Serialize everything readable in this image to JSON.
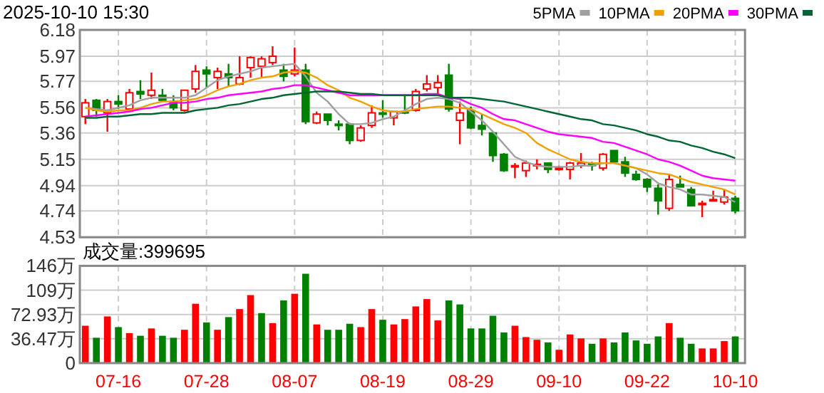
{
  "chart_data": [
    {
      "type": "candlestick",
      "title": "2025-10-10 15:30",
      "categories": [
        null,
        null,
        null,
        null,
        null,
        null,
        null,
        null,
        null,
        null,
        null,
        null,
        null,
        null,
        null,
        null,
        null,
        null,
        null,
        null,
        null,
        null,
        null,
        null,
        null,
        null,
        null,
        null,
        null,
        null,
        null,
        null,
        null,
        null,
        null,
        null,
        null,
        null,
        null,
        null,
        null,
        null,
        null,
        null,
        null,
        null,
        null,
        null,
        null,
        null,
        null,
        null,
        null,
        null,
        null,
        null,
        null,
        null,
        null,
        null
      ],
      "ohlc": [
        [
          5.49,
          5.63,
          5.43,
          5.6
        ],
        [
          5.62,
          5.63,
          5.49,
          5.54
        ],
        [
          5.52,
          5.63,
          5.37,
          5.61
        ],
        [
          5.61,
          5.66,
          5.55,
          5.59
        ],
        [
          5.55,
          5.71,
          5.54,
          5.68
        ],
        [
          5.69,
          5.78,
          5.63,
          5.67
        ],
        [
          5.66,
          5.84,
          5.63,
          5.7
        ],
        [
          5.66,
          5.71,
          5.61,
          5.62
        ],
        [
          5.61,
          5.66,
          5.54,
          5.56
        ],
        [
          5.54,
          5.7,
          5.53,
          5.7
        ],
        [
          5.71,
          5.9,
          5.68,
          5.85
        ],
        [
          5.86,
          5.89,
          5.72,
          5.83
        ],
        [
          5.8,
          5.88,
          5.71,
          5.85
        ],
        [
          5.83,
          5.91,
          5.73,
          5.8
        ],
        [
          5.75,
          5.97,
          5.74,
          5.8
        ],
        [
          5.88,
          5.97,
          5.8,
          5.96
        ],
        [
          5.89,
          5.97,
          5.8,
          5.95
        ],
        [
          5.92,
          6.05,
          5.9,
          5.97
        ],
        [
          5.86,
          5.91,
          5.77,
          5.81
        ],
        [
          5.83,
          6.04,
          5.81,
          5.86
        ],
        [
          5.86,
          5.91,
          5.43,
          5.45
        ],
        [
          5.44,
          5.53,
          5.43,
          5.51
        ],
        [
          5.51,
          5.51,
          5.42,
          5.46
        ],
        [
          5.43,
          5.46,
          5.38,
          5.42
        ],
        [
          5.43,
          5.44,
          5.27,
          5.3
        ],
        [
          5.3,
          5.42,
          5.29,
          5.4
        ],
        [
          5.42,
          5.58,
          5.4,
          5.52
        ],
        [
          5.52,
          5.62,
          5.48,
          5.51
        ],
        [
          5.48,
          5.53,
          5.42,
          5.53
        ],
        [
          5.53,
          5.66,
          5.51,
          5.52
        ],
        [
          5.54,
          5.71,
          5.53,
          5.69
        ],
        [
          5.71,
          5.82,
          5.69,
          5.75
        ],
        [
          5.72,
          5.82,
          5.67,
          5.76
        ],
        [
          5.82,
          5.91,
          5.53,
          5.55
        ],
        [
          5.46,
          5.61,
          5.27,
          5.52
        ],
        [
          5.54,
          5.57,
          5.39,
          5.4
        ],
        [
          5.42,
          5.51,
          5.34,
          5.39
        ],
        [
          5.36,
          5.36,
          5.13,
          5.18
        ],
        [
          5.19,
          5.2,
          5.05,
          5.06
        ],
        [
          5.09,
          5.12,
          5.0,
          5.1
        ],
        [
          5.06,
          5.14,
          5.01,
          5.12
        ],
        [
          5.1,
          5.15,
          5.07,
          5.11
        ],
        [
          5.12,
          5.12,
          5.04,
          5.07
        ],
        [
          5.07,
          5.1,
          5.06,
          5.08
        ],
        [
          5.07,
          5.13,
          4.99,
          5.12
        ],
        [
          5.1,
          5.2,
          5.08,
          5.12
        ],
        [
          5.12,
          5.13,
          5.06,
          5.1
        ],
        [
          5.08,
          5.2,
          5.06,
          5.19
        ],
        [
          5.22,
          5.22,
          5.13,
          5.13
        ],
        [
          5.13,
          5.17,
          5.01,
          5.04
        ],
        [
          5.03,
          5.06,
          4.98,
          4.99
        ],
        [
          4.99,
          5.0,
          4.89,
          4.93
        ],
        [
          4.92,
          4.95,
          4.71,
          4.82
        ],
        [
          4.76,
          5.03,
          4.74,
          4.99
        ],
        [
          4.95,
          5.02,
          4.93,
          4.93
        ],
        [
          4.91,
          4.93,
          4.78,
          4.78
        ],
        [
          4.79,
          4.82,
          4.69,
          4.8
        ],
        [
          4.82,
          4.9,
          4.82,
          4.83
        ],
        [
          4.81,
          4.91,
          4.79,
          4.85
        ],
        [
          4.84,
          4.86,
          4.72,
          4.74
        ]
      ],
      "series": [
        {
          "type": "line",
          "name": "5PMA",
          "color": "#a0a0a0",
          "values": [
            5.56,
            5.55,
            5.54,
            5.56,
            5.58,
            5.62,
            5.64,
            5.64,
            5.64,
            5.64,
            5.66,
            5.72,
            5.78,
            5.81,
            5.83,
            5.85,
            5.88,
            5.89,
            5.9,
            5.91,
            5.81,
            5.68,
            5.61,
            5.51,
            5.43,
            5.43,
            5.44,
            5.47,
            5.49,
            5.54,
            5.59,
            5.63,
            5.64,
            5.63,
            5.6,
            5.53,
            5.46,
            5.37,
            5.27,
            5.17,
            5.13,
            5.1,
            5.09,
            5.09,
            5.09,
            5.1,
            5.1,
            5.12,
            5.12,
            5.1,
            5.08,
            5.03,
            4.96,
            4.93,
            4.91,
            4.87,
            4.87,
            4.86,
            4.85,
            4.81
          ]
        },
        {
          "type": "line",
          "name": "10PMA",
          "color": "#f0a000",
          "values": [
            5.56,
            5.54,
            5.53,
            5.54,
            5.54,
            5.56,
            5.59,
            5.61,
            5.61,
            5.62,
            5.63,
            5.66,
            5.7,
            5.73,
            5.75,
            5.78,
            5.8,
            5.81,
            5.84,
            5.85,
            5.84,
            5.8,
            5.74,
            5.7,
            5.64,
            5.61,
            5.57,
            5.54,
            5.53,
            5.53,
            5.55,
            5.56,
            5.57,
            5.57,
            5.56,
            5.55,
            5.51,
            5.47,
            5.43,
            5.4,
            5.36,
            5.28,
            5.23,
            5.19,
            5.15,
            5.13,
            5.12,
            5.12,
            5.12,
            5.1,
            5.08,
            5.06,
            5.04,
            5.03,
            5.0,
            4.97,
            4.95,
            4.93,
            4.91,
            4.87
          ]
        },
        {
          "type": "line",
          "name": "20PMA",
          "color": "#ff00ff",
          "values": [
            5.49,
            5.5,
            5.51,
            5.52,
            5.53,
            5.55,
            5.56,
            5.58,
            5.6,
            5.6,
            5.61,
            5.63,
            5.64,
            5.66,
            5.67,
            5.68,
            5.69,
            5.71,
            5.72,
            5.74,
            5.74,
            5.72,
            5.7,
            5.68,
            5.66,
            5.66,
            5.66,
            5.66,
            5.66,
            5.66,
            5.66,
            5.67,
            5.67,
            5.64,
            5.63,
            5.59,
            5.56,
            5.51,
            5.47,
            5.46,
            5.43,
            5.4,
            5.37,
            5.35,
            5.34,
            5.33,
            5.32,
            5.29,
            5.28,
            5.25,
            5.22,
            5.19,
            5.15,
            5.13,
            5.1,
            5.06,
            5.02,
            5.0,
            4.99,
            4.98
          ]
        },
        {
          "type": "line",
          "name": "30PMA",
          "color": "#006633",
          "values": [
            5.48,
            5.48,
            5.49,
            5.49,
            5.5,
            5.51,
            5.51,
            5.52,
            5.52,
            5.52,
            5.54,
            5.55,
            5.56,
            5.58,
            5.59,
            5.61,
            5.63,
            5.64,
            5.66,
            5.67,
            5.68,
            5.69,
            5.69,
            5.69,
            5.68,
            5.67,
            5.67,
            5.66,
            5.66,
            5.66,
            5.66,
            5.66,
            5.66,
            5.64,
            5.64,
            5.64,
            5.63,
            5.62,
            5.61,
            5.59,
            5.57,
            5.55,
            5.53,
            5.51,
            5.49,
            5.47,
            5.46,
            5.43,
            5.42,
            5.4,
            5.38,
            5.35,
            5.33,
            5.3,
            5.29,
            5.26,
            5.24,
            5.21,
            5.19,
            5.16
          ]
        }
      ],
      "ylim": [
        4.53,
        6.18
      ],
      "yticks": [
        4.53,
        4.74,
        4.94,
        5.15,
        5.36,
        5.56,
        5.77,
        5.97,
        6.18
      ],
      "grid": true,
      "legend": "top right",
      "tick_labels": "y"
    },
    {
      "type": "bar",
      "title": "成交量:399695",
      "categories": [
        null,
        null,
        null,
        "07-16",
        null,
        null,
        null,
        null,
        null,
        null,
        null,
        "07-28",
        null,
        null,
        null,
        null,
        null,
        null,
        null,
        "08-07",
        null,
        null,
        null,
        null,
        null,
        null,
        null,
        "08-19",
        null,
        null,
        null,
        null,
        null,
        null,
        null,
        "08-29",
        null,
        null,
        null,
        null,
        null,
        null,
        null,
        "09-10",
        null,
        null,
        null,
        null,
        null,
        null,
        null,
        "09-22",
        null,
        null,
        null,
        null,
        null,
        null,
        null,
        "10-10"
      ],
      "values": [
        56,
        38,
        70,
        54,
        45,
        41,
        52,
        41,
        38,
        50,
        89,
        61,
        50,
        69,
        81,
        102,
        75,
        60,
        94,
        104,
        134,
        58,
        50,
        50,
        59,
        54,
        81,
        65,
        58,
        66,
        85,
        96,
        64,
        94,
        88,
        52,
        52,
        71,
        46,
        56,
        39,
        35,
        31,
        20,
        43,
        37,
        29,
        37,
        31,
        46,
        34,
        29,
        40,
        60,
        38,
        29,
        22,
        22,
        33,
        39.97
      ],
      "colors": [
        "#ff0000",
        "#008000",
        "#ff0000",
        "#008000",
        "#ff0000",
        "#008000",
        "#ff0000",
        "#008000",
        "#008000",
        "#ff0000",
        "#ff0000",
        "#008000",
        "#ff0000",
        "#008000",
        "#ff0000",
        "#ff0000",
        "#008000",
        "#ff0000",
        "#008000",
        "#ff0000",
        "#008000",
        "#ff0000",
        "#008000",
        "#008000",
        "#008000",
        "#ff0000",
        "#ff0000",
        "#008000",
        "#ff0000",
        "#ff0000",
        "#ff0000",
        "#ff0000",
        "#ff0000",
        "#008000",
        "#008000",
        "#008000",
        "#008000",
        "#008000",
        "#008000",
        "#ff0000",
        "#ff0000",
        "#ff0000",
        "#008000",
        "#ff0000",
        "#ff0000",
        "#ff0000",
        "#008000",
        "#ff0000",
        "#008000",
        "#008000",
        "#008000",
        "#008000",
        "#008000",
        "#ff0000",
        "#008000",
        "#008000",
        "#ff0000",
        "#ff0000",
        "#ff0000",
        "#008000"
      ],
      "ylim": [
        0,
        145.87
      ],
      "yticks": [
        0,
        {
          "value": 36.47,
          "label": "36.47万"
        },
        {
          "value": 72.93,
          "label": "72.93万"
        },
        {
          "value": 109.4,
          "label": "109万"
        },
        {
          "value": 145.87,
          "label": "146万"
        }
      ],
      "grid": true
    }
  ]
}
